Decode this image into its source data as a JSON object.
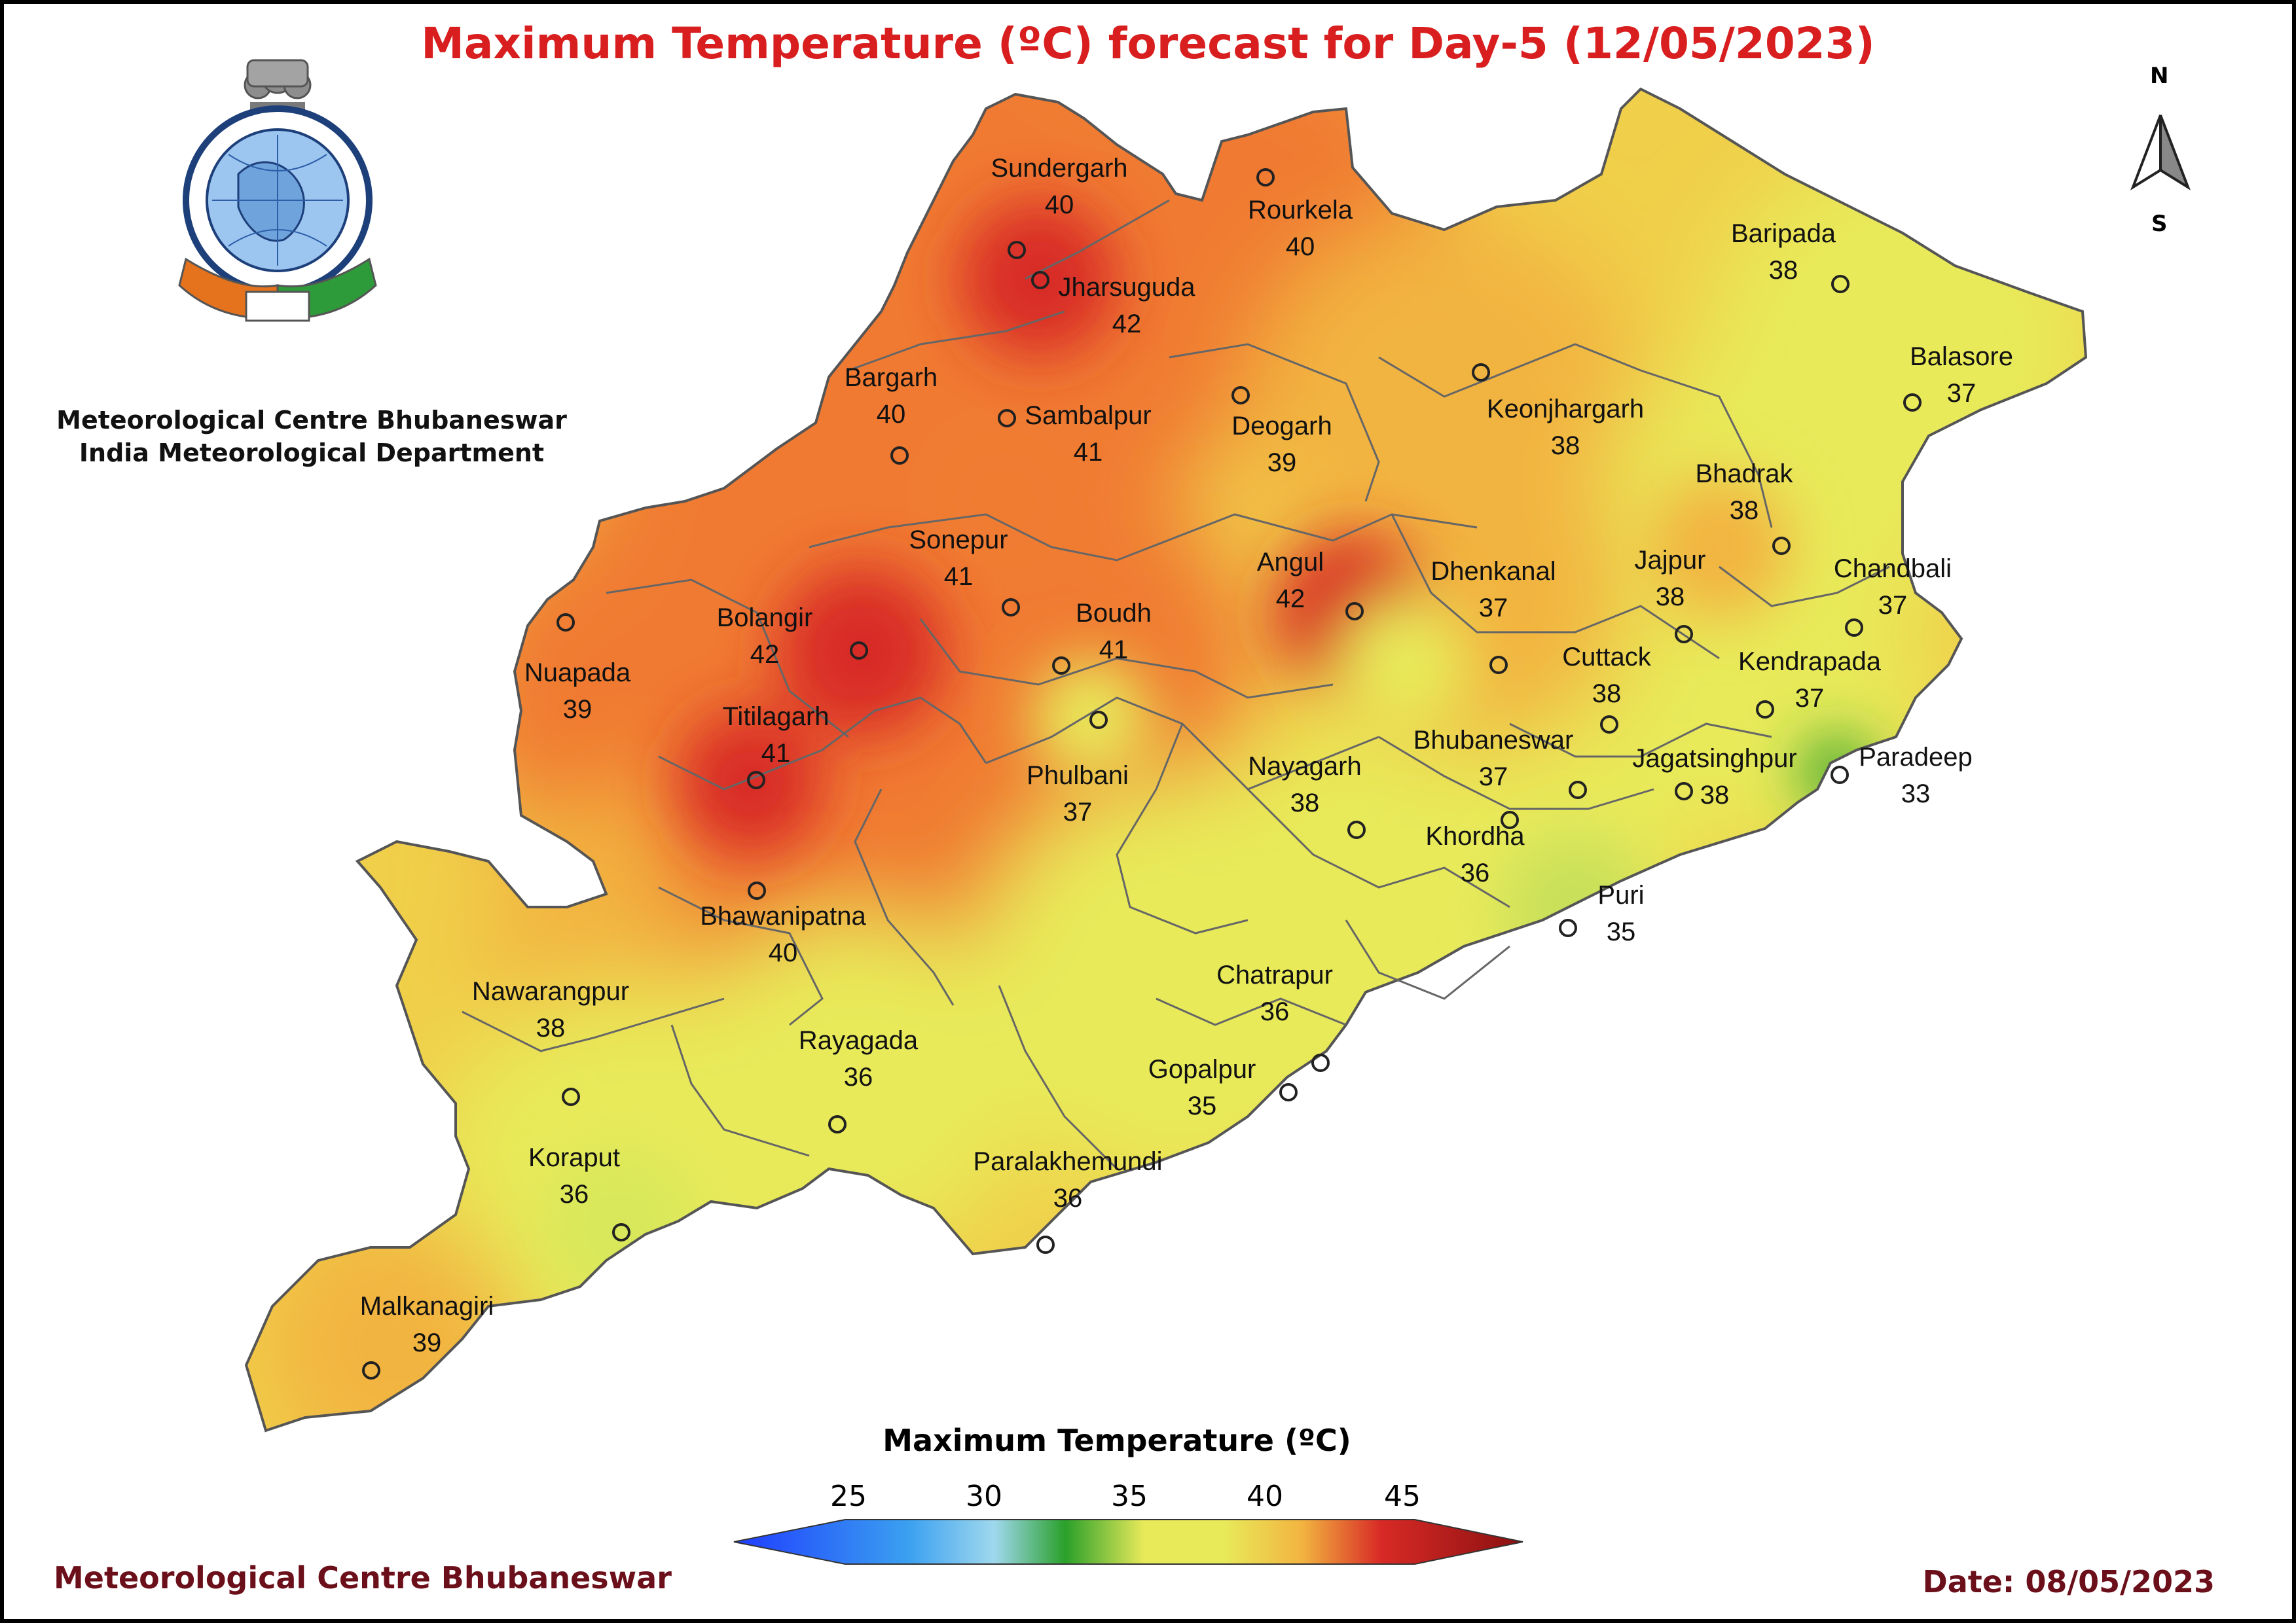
{
  "title": "Maximum Temperature (ºC) forecast for Day-5 (12/05/2023)",
  "organization": {
    "line1": "Meteorological Centre Bhubaneswar",
    "line2": "India Meteorological Department"
  },
  "footer": {
    "left": "Meteorological Centre Bhubaneswar",
    "right": "Date: 08/05/2023"
  },
  "compass": {
    "north": "N",
    "south": "S"
  },
  "legend": {
    "title": "Maximum Temperature (ºC)",
    "ticks": [
      "25",
      "30",
      "35",
      "40",
      "45"
    ],
    "range": [
      22,
      48
    ]
  },
  "colors": {
    "c25": "#1f3cff",
    "c30": "#9fd8ee",
    "c32": "#2aa02a",
    "c35": "#e8ea5a",
    "c38": "#f2b440",
    "c40": "#f07a30",
    "c42": "#d82a26",
    "c45": "#8a1010",
    "title": "#d81e1e",
    "footer": "#6b0f1a"
  },
  "stations": [
    {
      "name": "Sundergarh",
      "value": "40"
    },
    {
      "name": "Rourkela",
      "value": "40"
    },
    {
      "name": "Jharsuguda",
      "value": "42"
    },
    {
      "name": "Baripada",
      "value": "38"
    },
    {
      "name": "Balasore",
      "value": "37"
    },
    {
      "name": "Bargarh",
      "value": "40"
    },
    {
      "name": "Sambalpur",
      "value": "41"
    },
    {
      "name": "Deogarh",
      "value": "39"
    },
    {
      "name": "Keonjhargarh",
      "value": "38"
    },
    {
      "name": "Bhadrak",
      "value": "38"
    },
    {
      "name": "Sonepur",
      "value": "41"
    },
    {
      "name": "Angul",
      "value": "42"
    },
    {
      "name": "Dhenkanal",
      "value": "37"
    },
    {
      "name": "Jajpur",
      "value": "38"
    },
    {
      "name": "Chandbali",
      "value": "37"
    },
    {
      "name": "Bolangir",
      "value": "42"
    },
    {
      "name": "Boudh",
      "value": "41"
    },
    {
      "name": "Nuapada",
      "value": "39"
    },
    {
      "name": "Cuttack",
      "value": "38"
    },
    {
      "name": "Kendrapada",
      "value": "37"
    },
    {
      "name": "Titilagarh",
      "value": "41"
    },
    {
      "name": "Bhubaneswar",
      "value": "37"
    },
    {
      "name": "Phulbani",
      "value": "37"
    },
    {
      "name": "Nayagarh",
      "value": "38"
    },
    {
      "name": "Jagatsinghpur",
      "value": "38"
    },
    {
      "name": "Paradeep",
      "value": "33"
    },
    {
      "name": "Khordha",
      "value": "36"
    },
    {
      "name": "Bhawanipatna",
      "value": "40"
    },
    {
      "name": "Puri",
      "value": "35"
    },
    {
      "name": "Nawarangpur",
      "value": "38"
    },
    {
      "name": "Chatrapur",
      "value": "36"
    },
    {
      "name": "Rayagada",
      "value": "36"
    },
    {
      "name": "Gopalpur",
      "value": "35"
    },
    {
      "name": "Koraput",
      "value": "36"
    },
    {
      "name": "Paralakhemundi",
      "value": "36"
    },
    {
      "name": "Malkanagiri",
      "value": "39"
    }
  ]
}
